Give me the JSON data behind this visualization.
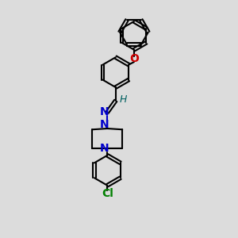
{
  "bg_color": "#dcdcdc",
  "bond_color": "#000000",
  "N_color": "#0000cc",
  "O_color": "#cc0000",
  "Cl_color": "#008000",
  "H_color": "#006060",
  "line_width": 1.5,
  "fig_size": [
    3.0,
    3.0
  ],
  "dpi": 100,
  "xlim": [
    0,
    10
  ],
  "ylim": [
    0,
    14
  ]
}
